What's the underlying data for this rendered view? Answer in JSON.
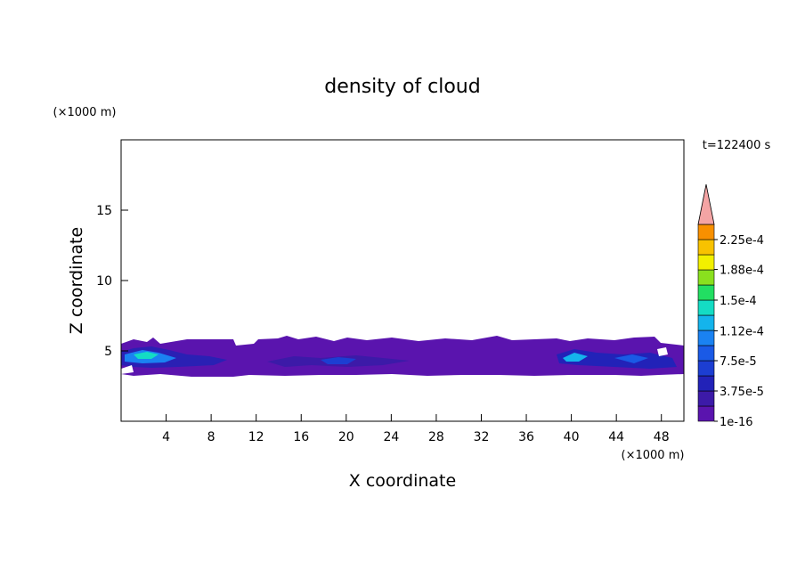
{
  "chart_data": {
    "type": "contour",
    "title": "density of cloud",
    "x_label": "X coordinate",
    "y_label": "Z coordinate",
    "x_unit": "(×1000 m)",
    "y_unit": "(×1000 m)",
    "time_label": "t=122400 s",
    "xlim": [
      0,
      50
    ],
    "xticks": [
      4,
      8,
      12,
      16,
      20,
      24,
      28,
      32,
      36,
      40,
      44,
      48
    ],
    "ylim": [
      0,
      20
    ],
    "yticks": [
      5,
      10,
      15
    ],
    "colorbar": {
      "ticks": [
        {
          "value": 1e-16,
          "label": "1e-16"
        },
        {
          "value": 3.75e-05,
          "label": "3.75e-5"
        },
        {
          "value": 7.5e-05,
          "label": "7.5e-5"
        },
        {
          "value": 0.000112,
          "label": "1.12e-4"
        },
        {
          "value": 0.00015,
          "label": "1.5e-4"
        },
        {
          "value": 0.000188,
          "label": "1.88e-4"
        },
        {
          "value": 0.000225,
          "label": "2.25e-4"
        }
      ],
      "colors": [
        "#5a14ae",
        "#3c1aa8",
        "#2222b8",
        "#1c3ed2",
        "#1a5ae6",
        "#1a82f2",
        "#14b4ec",
        "#14dcc4",
        "#22de62",
        "#8ae01e",
        "#f2f000",
        "#f8c200",
        "#f89000",
        "#f85a00",
        "#e82418"
      ],
      "extend_color": "#f4a4a4"
    }
  }
}
